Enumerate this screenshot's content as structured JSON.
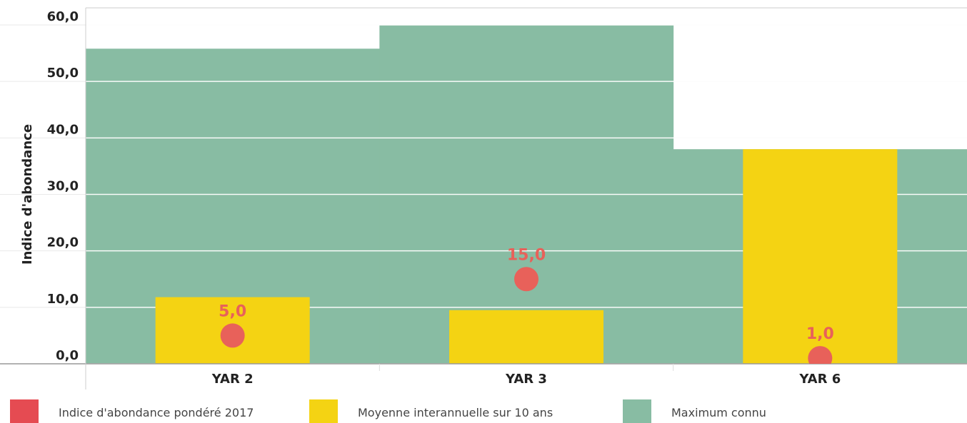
{
  "chart_data": {
    "type": "bar",
    "title": "",
    "xlabel": "",
    "ylabel": "Indice d'abondance",
    "categories": [
      "YAR 2",
      "YAR 3",
      "YAR 6"
    ],
    "ylim": [
      0,
      60
    ],
    "yticks": [
      "0,0",
      "10,0",
      "20,0",
      "30,0",
      "40,0",
      "50,0",
      "60,0"
    ],
    "grid": true,
    "legend_position": "bottom",
    "series": [
      {
        "name": "Indice d'abondance pondéré 2017",
        "kind": "point",
        "color": "#e8615a",
        "values": [
          5.0,
          15.0,
          1.0
        ],
        "labels": [
          "5,0",
          "15,0",
          "1,0"
        ]
      },
      {
        "name": "Moyenne interannuelle sur 10 ans",
        "kind": "bar",
        "color": "#f4d313",
        "values": [
          11.8,
          9.5,
          38.0
        ]
      },
      {
        "name": "Maximum connu",
        "kind": "background-bar",
        "color": "#88bca3",
        "values": [
          55.8,
          60.0,
          38.0
        ]
      }
    ]
  },
  "legend": {
    "swatch_colors": [
      "#e54b52",
      "#f4d313",
      "#88bca3"
    ]
  }
}
